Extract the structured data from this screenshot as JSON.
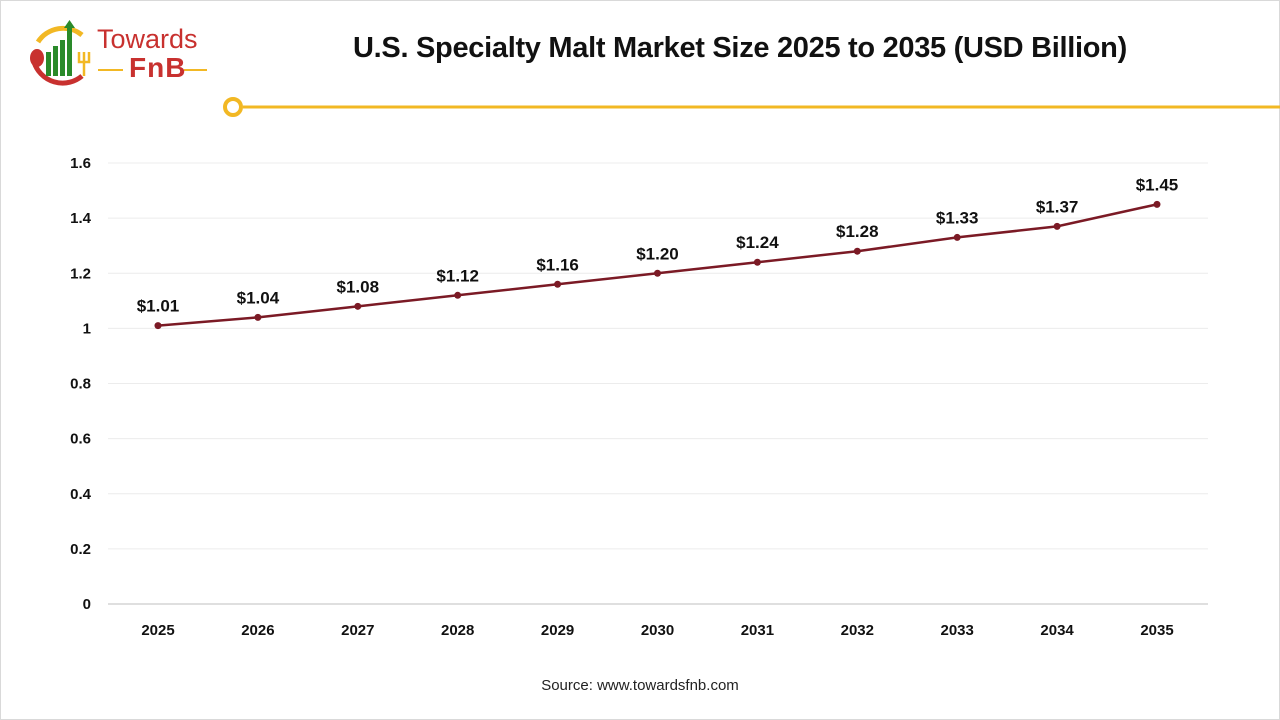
{
  "logo": {
    "line1": "Towards",
    "line2": "FnB"
  },
  "chart_data": {
    "type": "line",
    "title": "U.S. Specialty Malt Market Size 2025 to 2035 (USD Billion)",
    "categories": [
      "2025",
      "2026",
      "2027",
      "2028",
      "2029",
      "2030",
      "2031",
      "2032",
      "2033",
      "2034",
      "2035"
    ],
    "series": [
      {
        "values": [
          1.01,
          1.04,
          1.08,
          1.12,
          1.16,
          1.2,
          1.24,
          1.28,
          1.33,
          1.37,
          1.45
        ],
        "labels": [
          "$1.01",
          "$1.04",
          "$1.08",
          "$1.12",
          "$1.16",
          "$1.20",
          "$1.24",
          "$1.28",
          "$1.33",
          "$1.37",
          "$1.45"
        ]
      }
    ],
    "yticks": [
      "0",
      "0.2",
      "0.4",
      "0.6",
      "0.8",
      "1",
      "1.2",
      "1.4",
      "1.6"
    ],
    "ylim": [
      0,
      1.6
    ],
    "grid": true,
    "line_color": "#7b1a25",
    "accent_color": "#f2b824"
  },
  "source": "Source: www.towardsfnb.com"
}
